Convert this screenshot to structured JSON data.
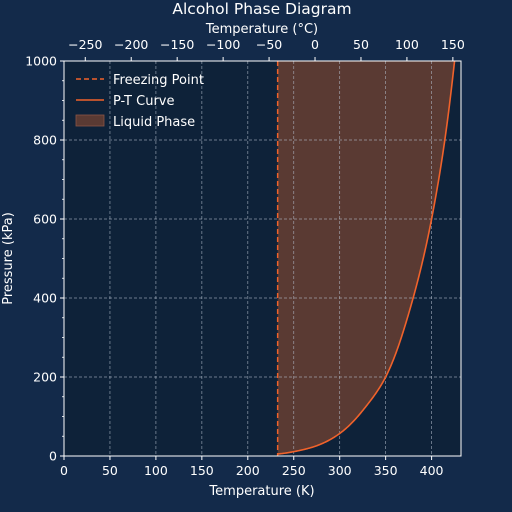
{
  "chart_data": {
    "type": "line",
    "title": "Alcohol Phase Diagram",
    "xlabel": "Temperature (K)",
    "ylabel": "Pressure (kPa)",
    "x2label": "Temperature (°C)",
    "xlim": [
      0,
      432
    ],
    "ylim": [
      0,
      1000
    ],
    "x2lim": [
      -273.15,
      158.85
    ],
    "xticks": [
      0,
      50,
      100,
      150,
      200,
      250,
      300,
      350,
      400
    ],
    "yticks": [
      0,
      200,
      400,
      600,
      800,
      1000
    ],
    "x2ticks": [
      -250,
      -200,
      -150,
      -100,
      -50,
      0,
      50,
      100,
      150
    ],
    "grid": true,
    "legend_position": "top-left",
    "freezing_point": {
      "name": "Freezing Point",
      "x": 232.5
    },
    "series": [
      {
        "name": "P-T Curve",
        "x": [
          232.5,
          250,
          275,
          300,
          325,
          350,
          375,
          400,
          415,
          425
        ],
        "y": [
          5,
          11,
          26,
          57,
          115,
          200,
          360,
          600,
          810,
          1000
        ]
      }
    ],
    "fill": {
      "name": "Liquid Phase"
    },
    "colors": {
      "background": "#132a4a",
      "plot_background": "#0e2239",
      "curve": "#f0622b",
      "freezing_line": "#f0622b",
      "fill": "#5a3a33",
      "grid": "#b7c1cf",
      "text": "#ffffff"
    }
  }
}
